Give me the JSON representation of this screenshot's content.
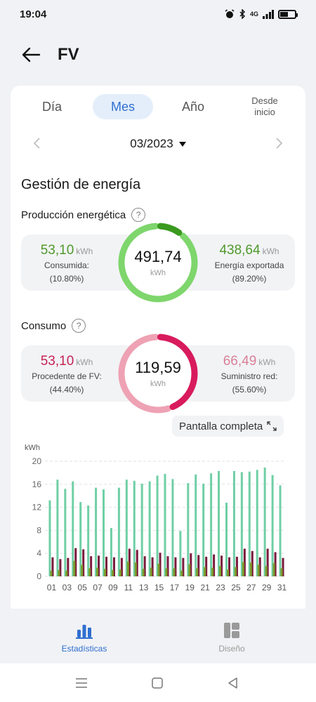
{
  "status": {
    "time": "19:04",
    "network": "4G"
  },
  "header": {
    "title": "FV"
  },
  "tabs": [
    {
      "label": "Día"
    },
    {
      "label": "Mes"
    },
    {
      "label": "Año"
    },
    {
      "label": "Desde inicio"
    }
  ],
  "date": {
    "value": "03/2023"
  },
  "section": {
    "title": "Gestión de energía"
  },
  "production": {
    "title": "Producción energética",
    "left_value": "53,10",
    "left_unit": "kWh",
    "left_label": "Consumida:",
    "left_pct": "(10.80%)",
    "center_value": "491,74",
    "center_unit": "kWh",
    "right_value": "438,64",
    "right_unit": "kWh",
    "right_label": "Energía exportada",
    "right_pct": "(89.20%)",
    "self_fraction": 0.108,
    "color_self": "#3a9a1e",
    "color_export": "#7ed66c"
  },
  "consumption": {
    "title": "Consumo",
    "left_value": "53,10",
    "left_unit": "kWh",
    "left_label": "Procedente de FV:",
    "left_pct": "(44.40%)",
    "center_value": "119,59",
    "center_unit": "kWh",
    "right_value": "66,49",
    "right_unit": "kWh",
    "right_label": "Suministro red:",
    "right_pct": "(55.60%)",
    "pv_fraction": 0.444,
    "color_pv": "#d81b5c",
    "color_grid": "#eea2b4"
  },
  "fullscreen": {
    "label": "Pantalla completa"
  },
  "chart_data": {
    "type": "bar",
    "ylabel": "kWh",
    "ylim": [
      0,
      20
    ],
    "yticks": [
      0,
      4,
      8,
      12,
      16,
      20
    ],
    "x_tick_labels": [
      "01",
      "03",
      "05",
      "07",
      "09",
      "11",
      "13",
      "15",
      "17",
      "19",
      "21",
      "23",
      "25",
      "27",
      "29",
      "31"
    ],
    "categories": [
      "01",
      "02",
      "03",
      "04",
      "05",
      "06",
      "07",
      "08",
      "09",
      "10",
      "11",
      "12",
      "13",
      "14",
      "15",
      "16",
      "17",
      "18",
      "19",
      "20",
      "21",
      "22",
      "23",
      "24",
      "25",
      "26",
      "27",
      "28",
      "29",
      "30",
      "31"
    ],
    "grid": true,
    "series": [
      {
        "color": "#6fcfa6",
        "values": [
          13.2,
          16.8,
          15.2,
          16.5,
          12.9,
          12.3,
          15.4,
          15.1,
          8.4,
          15.4,
          16.8,
          16.6,
          16.1,
          16.5,
          17.5,
          17.8,
          16.9,
          7.9,
          16.2,
          17.7,
          16.1,
          17.9,
          18.3,
          12.8,
          18.3,
          18.1,
          18.2,
          18.5,
          18.9,
          17.6,
          15.8
        ]
      },
      {
        "color": "#7a1a3c",
        "values": [
          3.3,
          3.0,
          3.2,
          4.9,
          4.7,
          3.5,
          3.6,
          3.4,
          3.3,
          3.2,
          4.8,
          4.6,
          3.5,
          3.3,
          4.1,
          3.5,
          3.3,
          3.2,
          4.0,
          3.7,
          3.4,
          3.8,
          3.6,
          3.3,
          3.4,
          4.8,
          4.4,
          3.3,
          4.8,
          4.2,
          3.2
        ]
      },
      {
        "color": "#7c9a2a",
        "values": [
          1.0,
          1.1,
          1.0,
          2.7,
          2.0,
          1.4,
          1.5,
          1.3,
          1.1,
          1.2,
          2.6,
          2.4,
          1.3,
          1.5,
          2.2,
          1.4,
          1.4,
          1.0,
          2.1,
          1.4,
          1.6,
          1.5,
          1.8,
          1.2,
          1.6,
          2.5,
          2.4,
          2.0,
          1.8,
          2.3,
          1.4
        ]
      }
    ]
  },
  "nav": {
    "stats_label": "Estadísticas",
    "design_label": "Diseño",
    "active_color": "#2f6fd1",
    "inactive_color": "#9a9a9a"
  }
}
